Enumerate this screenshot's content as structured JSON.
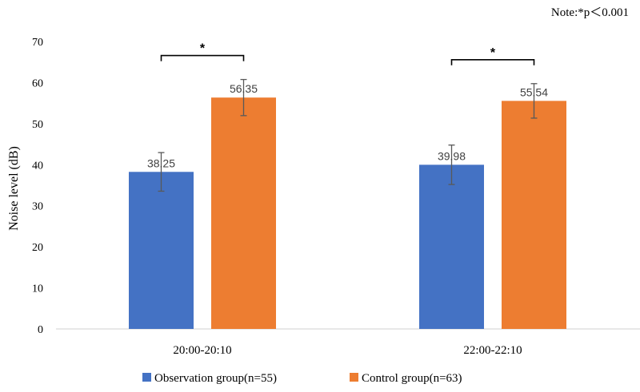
{
  "note": "Note:*p＜0.001",
  "chart_data": {
    "type": "bar",
    "ylabel": "Noise level (dB)",
    "xlabel": "",
    "ylim": [
      0,
      70
    ],
    "yticks": [
      0,
      10,
      20,
      30,
      40,
      50,
      60,
      70
    ],
    "grid": false,
    "legend_position": "bottom",
    "categories": [
      "20:00-20:10",
      "22:00-22:10"
    ],
    "series": [
      {
        "name": "Observation group(n=55)",
        "color": "#4472c4",
        "values": [
          38.25,
          39.98
        ],
        "labels": [
          "38.25",
          "39.98"
        ],
        "error": [
          4.7,
          4.8
        ]
      },
      {
        "name": "Control group(n=63)",
        "color": "#ed7d31",
        "values": [
          56.35,
          55.54
        ],
        "labels": [
          "56.35",
          "55.54"
        ],
        "error": [
          4.4,
          4.2
        ]
      }
    ],
    "significance": [
      {
        "category_index": 0,
        "symbol": "*"
      },
      {
        "category_index": 1,
        "symbol": "*"
      }
    ]
  }
}
